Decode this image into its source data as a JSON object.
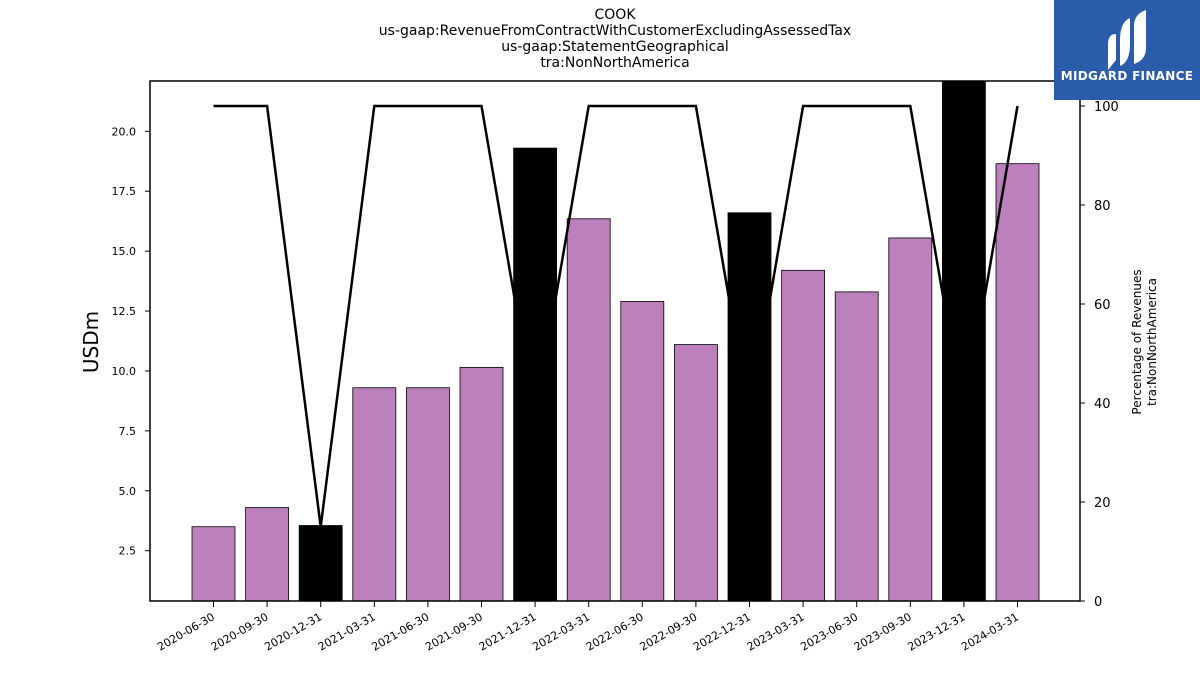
{
  "title_lines": [
    "COOK",
    "us-gaap:RevenueFromContractWithCustomerExcludingAssessedTax",
    "us-gaap:StatementGeographical",
    "tra:NonNorthAmerica"
  ],
  "logo": {
    "text": "MIDGARD FINANCE",
    "background": "#2b5bab"
  },
  "chart_data": {
    "type": "bar",
    "categories": [
      "2020-06-30",
      "2020-09-30",
      "2020-12-31",
      "2021-03-31",
      "2021-06-30",
      "2021-09-30",
      "2021-12-31",
      "2022-03-31",
      "2022-06-30",
      "2022-09-30",
      "2022-12-31",
      "2023-03-31",
      "2023-06-30",
      "2023-09-30",
      "2023-12-31",
      "2024-03-31"
    ],
    "values": [
      3.5,
      4.3,
      3.55,
      9.3,
      9.3,
      10.15,
      19.3,
      16.35,
      12.9,
      11.1,
      16.6,
      14.2,
      13.3,
      15.55,
      22.1,
      18.65
    ],
    "bar_colors": [
      "#bc80bd",
      "#bc80bd",
      "#000000",
      "#bc80bd",
      "#bc80bd",
      "#bc80bd",
      "#000000",
      "#bc80bd",
      "#bc80bd",
      "#bc80bd",
      "#000000",
      "#bc80bd",
      "#bc80bd",
      "#bc80bd",
      "#000000",
      "#bc80bd"
    ],
    "ylabel": "USDm",
    "ylim": [
      0.4,
      22.1
    ],
    "yticks": [
      "2.5",
      "5.0",
      "7.5",
      "10.0",
      "12.5",
      "15.0",
      "17.5",
      "20.0"
    ],
    "y2label_lines": [
      "Percentage of Revenues",
      "tra:NonNorthAmerica"
    ],
    "y2lim": [
      0,
      100
    ],
    "y2ticks": [
      "0",
      "20",
      "40",
      "60",
      "80",
      "100"
    ],
    "line_series": {
      "values": [
        100,
        100,
        15,
        100,
        100,
        100,
        37,
        100,
        100,
        100,
        37,
        100,
        100,
        100,
        37,
        100
      ],
      "color": "#000000"
    },
    "grid": false
  }
}
